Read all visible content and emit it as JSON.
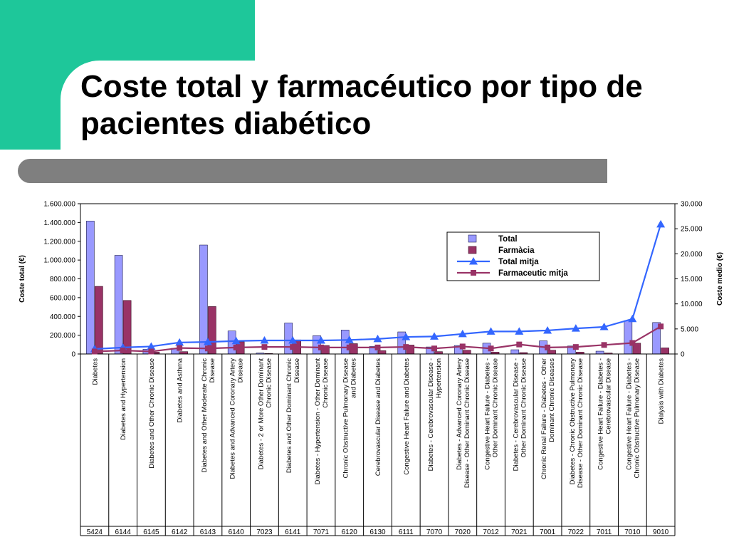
{
  "slide": {
    "title": "Coste total y farmacéutico por tipo de pacientes diabético"
  },
  "colors": {
    "teal": "#1ec79a",
    "gray_bar": "#7f7f7f",
    "total_bar": "#9999ff",
    "farmacia_bar": "#993366",
    "total_mitja_line": "#3366ff",
    "farmaceutic_mitja_line": "#993366"
  },
  "chart_data": {
    "type": "bar",
    "title": "",
    "xlabel": "",
    "ylabel": "Coste total (€)",
    "y2label": "Coste medio (€)",
    "ylim": [
      0,
      1600000
    ],
    "y2lim": [
      0,
      30000
    ],
    "yticks": [
      "0",
      "200.000",
      "400.000",
      "600.000",
      "800.000",
      "1.000.000",
      "1.200.000",
      "1.400.000",
      "1.600.000"
    ],
    "y2ticks": [
      "0",
      "5.000",
      "10.000",
      "15.000",
      "20.000",
      "25.000",
      "30.000"
    ],
    "legend_position": "top-right",
    "categories": [
      "Diabetes",
      "Diabetes and Hypertension",
      "Diabetes and Other Chronic Disease",
      "Diabetes and Asthma",
      "Diabetes and Other Moderate Chronic Disease",
      "Diabetes and Advanced Coronary Artery Disease",
      "Diabetes - 2 or More Other Dominant Chronic Disease",
      "Diabetes and Other Dominant Chronic Disease",
      "Diabetes - Hypertension - Other Dominant Chronic Disease",
      "Chronic Obstructive Pulmonary Disease and Diabetes",
      "Cerebrovascular Disease and Diabetes",
      "Congestive Heart Failure and Diabetes",
      "Diabetes - Cerebrovascular Disease - Hypertension",
      "Diabetes - Advanced Coronary Artery Disease - Other Dominant Chronic Disease",
      "Congestive Heart Failure - Diabetes - Other Dominant Chronic Disease",
      "Diabetes - Cerebrovascular Disease - Other Dominant Chronic Disease",
      "Chronic Renal Failure - Diabetes - Other Dominant Chronic Diseases",
      "Diabetes - Chronic Obstructive Pulmonary Disease - Other Dominant Chronic Disease",
      "Congestive Heart Failure - Diabetes - Cerebrovascular Disease",
      "Congestive Heart Failure - Diabetes - Chronic Obstructive Pulmonary Disease",
      "Dialysis with Diabetes"
    ],
    "codes": [
      "5424",
      "6144",
      "6145",
      "6142",
      "6143",
      "6140",
      "7023",
      "6141",
      "7071",
      "6120",
      "6130",
      "6111",
      "7070",
      "7020",
      "7012",
      "7021",
      "7001",
      "7022",
      "7011",
      "7010",
      "9010"
    ],
    "series": [
      {
        "name": "Total",
        "type": "bar",
        "axis": "left",
        "values": [
          1415000,
          1050000,
          50000,
          60000,
          1160000,
          245000,
          10000,
          330000,
          195000,
          255000,
          80000,
          235000,
          75000,
          90000,
          115000,
          45000,
          140000,
          85000,
          30000,
          355000,
          335000
        ]
      },
      {
        "name": "Farmàcia",
        "type": "bar",
        "axis": "left",
        "values": [
          720000,
          570000,
          20000,
          25000,
          505000,
          130000,
          5000,
          150000,
          90000,
          110000,
          35000,
          95000,
          25000,
          40000,
          20000,
          15000,
          40000,
          20000,
          10000,
          115000,
          65000
        ]
      },
      {
        "name": "Total mitja",
        "type": "line",
        "axis": "right",
        "values": [
          1000,
          1300,
          1500,
          2300,
          2400,
          2600,
          2700,
          2700,
          2700,
          2800,
          3000,
          3400,
          3500,
          4000,
          4500,
          4500,
          4700,
          5100,
          5400,
          7000,
          25900
        ]
      },
      {
        "name": "Farmaceutic mitja",
        "type": "line",
        "axis": "right",
        "values": [
          500,
          700,
          500,
          1200,
          1100,
          1300,
          1400,
          1400,
          1300,
          1300,
          1300,
          1400,
          1100,
          1500,
          1100,
          1900,
          1300,
          1400,
          1800,
          2200,
          5500
        ]
      }
    ]
  }
}
